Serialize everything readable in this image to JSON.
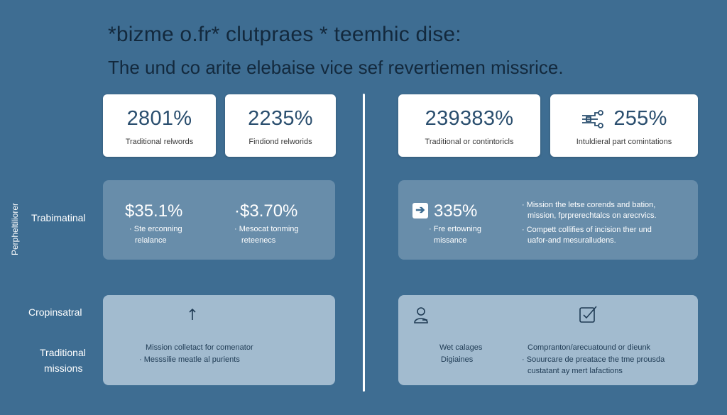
{
  "header": {
    "title": "*bizme o.fr* clutpraes * teemhic dise:",
    "subtitle": "The und co arite elebaise vice sef revertiemen missrice."
  },
  "side_labels": {
    "vertical": "Perpheltiliorer",
    "row2": "Trabimatinal",
    "row3": "Cropinsatral",
    "row3b_line1": "Traditional",
    "row3b_line2": "missions"
  },
  "top_cards": [
    {
      "value": "2801%",
      "label": "Traditional relwords"
    },
    {
      "value": "2235%",
      "label": "Findiond relworids"
    },
    {
      "value": "239383%",
      "label": "Traditional or contintoricls"
    },
    {
      "value": "255%",
      "label": "Intuldieral part comintations",
      "icon": "network-nodes-icon"
    }
  ],
  "mid_left": {
    "a_value": "$35.1%",
    "a_line1": "Ste erconning",
    "a_line2": "relalance",
    "b_value": "$3.70%",
    "b_line1": "Mesocat tonming",
    "b_line2": "reteenecs"
  },
  "mid_right": {
    "value": "335%",
    "icon": "arrow-right-icon",
    "line1": "Fre ertowning",
    "line2": "missance",
    "b_line1": "Mission the letse corends and bation,",
    "b_line2": "mission, fprprerechtalcs on arecrvics.",
    "b_line3": "Compett collifies of incision ther und",
    "b_line4": "uafor-and mesuralludens."
  },
  "low_left": {
    "icon": "arrow-up-icon",
    "line1": "Mission colletact for comenator",
    "line2": "Messsilie meatle al purients"
  },
  "low_right": {
    "icon_a": "person-icon",
    "icon_b": "checklist-icon",
    "a_line1": "Wet calages",
    "a_line2": "Digiaines",
    "b_line1": "Compranton/arecuatound or dieunk",
    "b_line2": "Souurcare de preatace the tme prousda",
    "b_line3": "custatant ay mert lafactions"
  },
  "colors": {
    "background": "#3e6d92",
    "title": "#13293d",
    "card": "#ffffff",
    "card_value": "#2a4e6e"
  }
}
